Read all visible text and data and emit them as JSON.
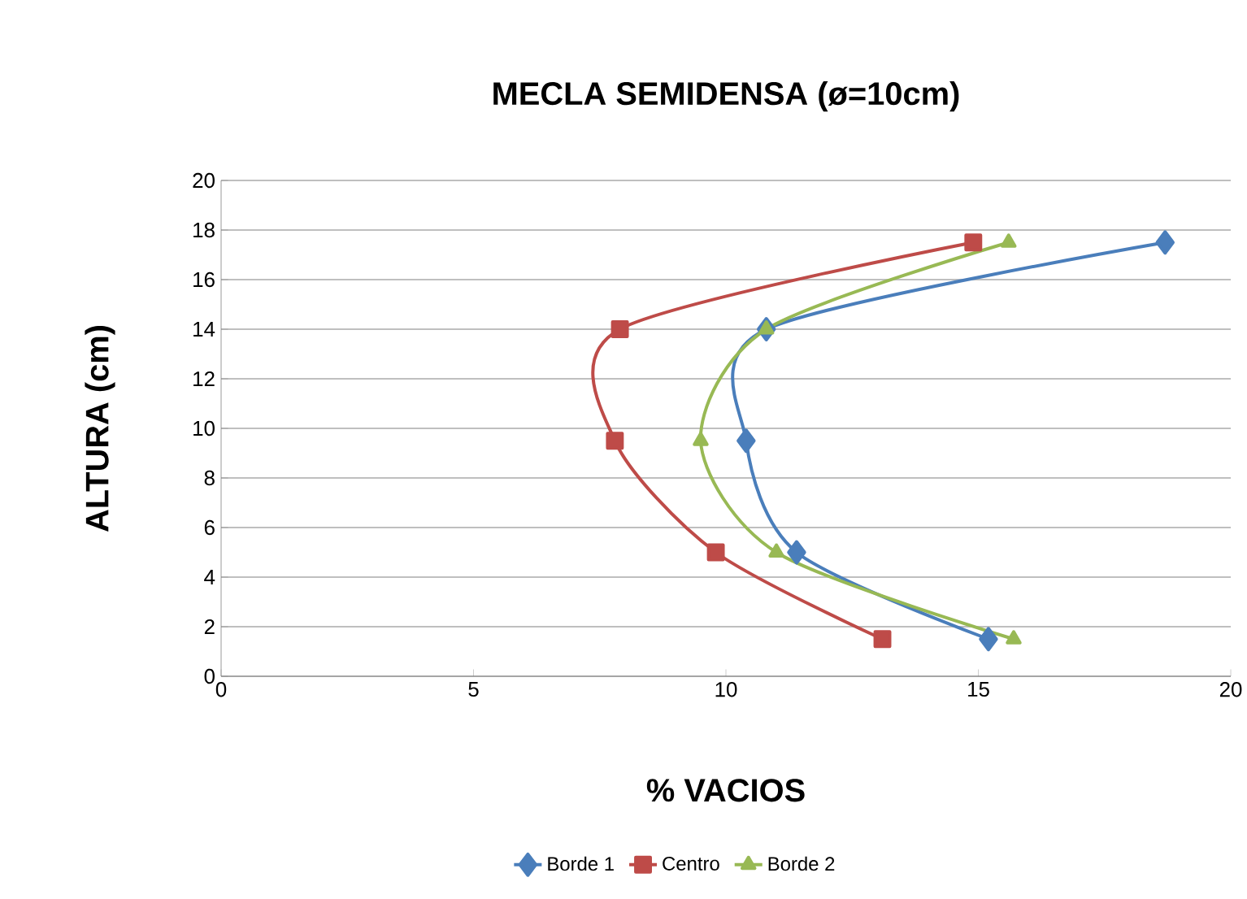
{
  "chart_data": {
    "type": "line",
    "title": "MECLA SEMIDENSA   (ø=10cm)",
    "xlabel": "% VACIOS",
    "ylabel": "ALTURA (cm)",
    "xlim": [
      0,
      20
    ],
    "xticks": [
      0,
      5,
      10,
      15,
      20
    ],
    "ylim": [
      0,
      20
    ],
    "yticks": [
      0,
      2,
      4,
      6,
      8,
      10,
      12,
      14,
      16,
      18,
      20
    ],
    "grid": "y",
    "legend": "bottom",
    "series": [
      {
        "name": "Borde 1",
        "color": "#4a7ebb",
        "marker": "diamond",
        "x": [
          18.7,
          10.8,
          10.4,
          11.4,
          15.2
        ],
        "values": [
          17.5,
          14,
          9.5,
          5,
          1.5
        ]
      },
      {
        "name": "Centro",
        "color": "#be4b48",
        "marker": "square",
        "x": [
          14.9,
          7.9,
          7.8,
          9.8,
          13.1
        ],
        "values": [
          17.5,
          14,
          9.5,
          5,
          1.5
        ]
      },
      {
        "name": "Borde  2",
        "color": "#98b954",
        "marker": "triangle",
        "x": [
          15.6,
          10.8,
          9.5,
          11.0,
          15.7
        ],
        "values": [
          17.5,
          14,
          9.5,
          5,
          1.5
        ]
      }
    ]
  }
}
